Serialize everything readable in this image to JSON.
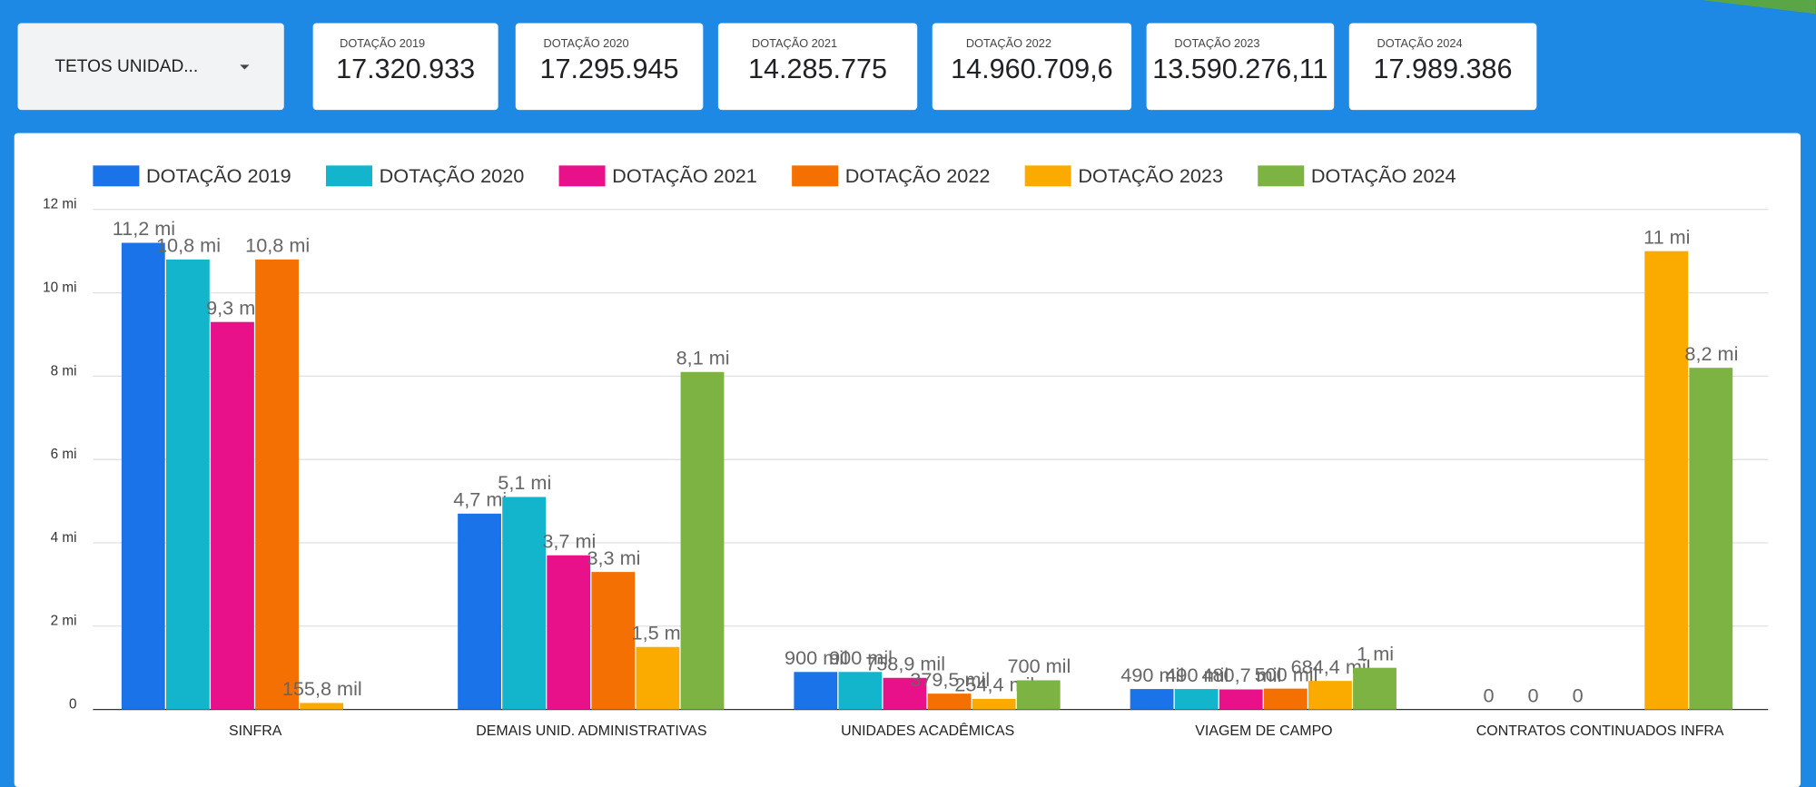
{
  "dropdown": {
    "label": "TETOS UNIDAD..."
  },
  "scorecards": [
    {
      "title": "DOTAÇÃO 2019",
      "value": "17.320.933"
    },
    {
      "title": "DOTAÇÃO 2020",
      "value": "17.295.945"
    },
    {
      "title": "DOTAÇÃO 2021",
      "value": "14.285.775"
    },
    {
      "title": "DOTAÇÃO 2022",
      "value": "14.960.709,6"
    },
    {
      "title": "DOTAÇÃO 2023",
      "value": "13.590.276,11"
    },
    {
      "title": "DOTAÇÃO 2024",
      "value": "17.989.386"
    }
  ],
  "chart_data": {
    "type": "bar",
    "categories": [
      "SINFRA",
      "DEMAIS UNID. ADMINISTRATIVAS",
      "UNIDADES ACADÊMICAS",
      "VIAGEM DE CAMPO",
      "CONTRATOS CONTINUADOS INFRA"
    ],
    "ylim": [
      0,
      12000000
    ],
    "yticks": [
      0,
      {
        "value": 2000000,
        "label": "2 mi"
      },
      {
        "value": 4000000,
        "label": "4 mi"
      },
      {
        "value": 6000000,
        "label": "6 mi"
      },
      {
        "value": 8000000,
        "label": "8 mi"
      },
      {
        "value": 10000000,
        "label": "10 mi"
      },
      {
        "value": 12000000,
        "label": "12 mi"
      }
    ],
    "grid": true,
    "legend": "top",
    "series": [
      {
        "name": "DOTAÇÃO 2019",
        "color": "#1a73e8",
        "values": [
          11200000,
          4700000,
          900000,
          490000,
          0
        ],
        "value_labels": [
          "11,2 mi",
          "4,7 mi",
          "900 mil",
          "490 mil",
          "0"
        ]
      },
      {
        "name": "DOTAÇÃO 2020",
        "color": "#12b5cb",
        "values": [
          10800000,
          5100000,
          900000,
          490000,
          0
        ],
        "value_labels": [
          "10,8 mi",
          "5,1 mi",
          "900 mil",
          "490 mil",
          "0"
        ]
      },
      {
        "name": "DOTAÇÃO 2021",
        "color": "#e8118a",
        "values": [
          9300000,
          3700000,
          758900,
          480700,
          0
        ],
        "value_labels": [
          "9,3 mi",
          "3,7 mi",
          "758,9 mil",
          "480,7 mil",
          "0"
        ]
      },
      {
        "name": "DOTAÇÃO 2022",
        "color": "#f57002",
        "values": [
          10800000,
          3300000,
          379500,
          500000,
          null
        ],
        "value_labels": [
          "10,8 mi",
          "3,3 mi",
          "379,5 mil",
          "500 mil",
          null
        ]
      },
      {
        "name": "DOTAÇÃO 2023",
        "color": "#fbaa00",
        "values": [
          155800,
          1500000,
          254400,
          684400,
          11000000
        ],
        "value_labels": [
          "155,8 mil",
          "1,5 mi",
          "254,4 mil",
          "684,4 mil",
          "11 mi"
        ]
      },
      {
        "name": "DOTAÇÃO 2024",
        "color": "#7cb342",
        "values": [
          null,
          8100000,
          700000,
          1000000,
          8200000
        ],
        "value_labels": [
          null,
          "8,1 mi",
          "700 mil",
          "1 mi",
          "8,2 mi"
        ]
      }
    ]
  }
}
